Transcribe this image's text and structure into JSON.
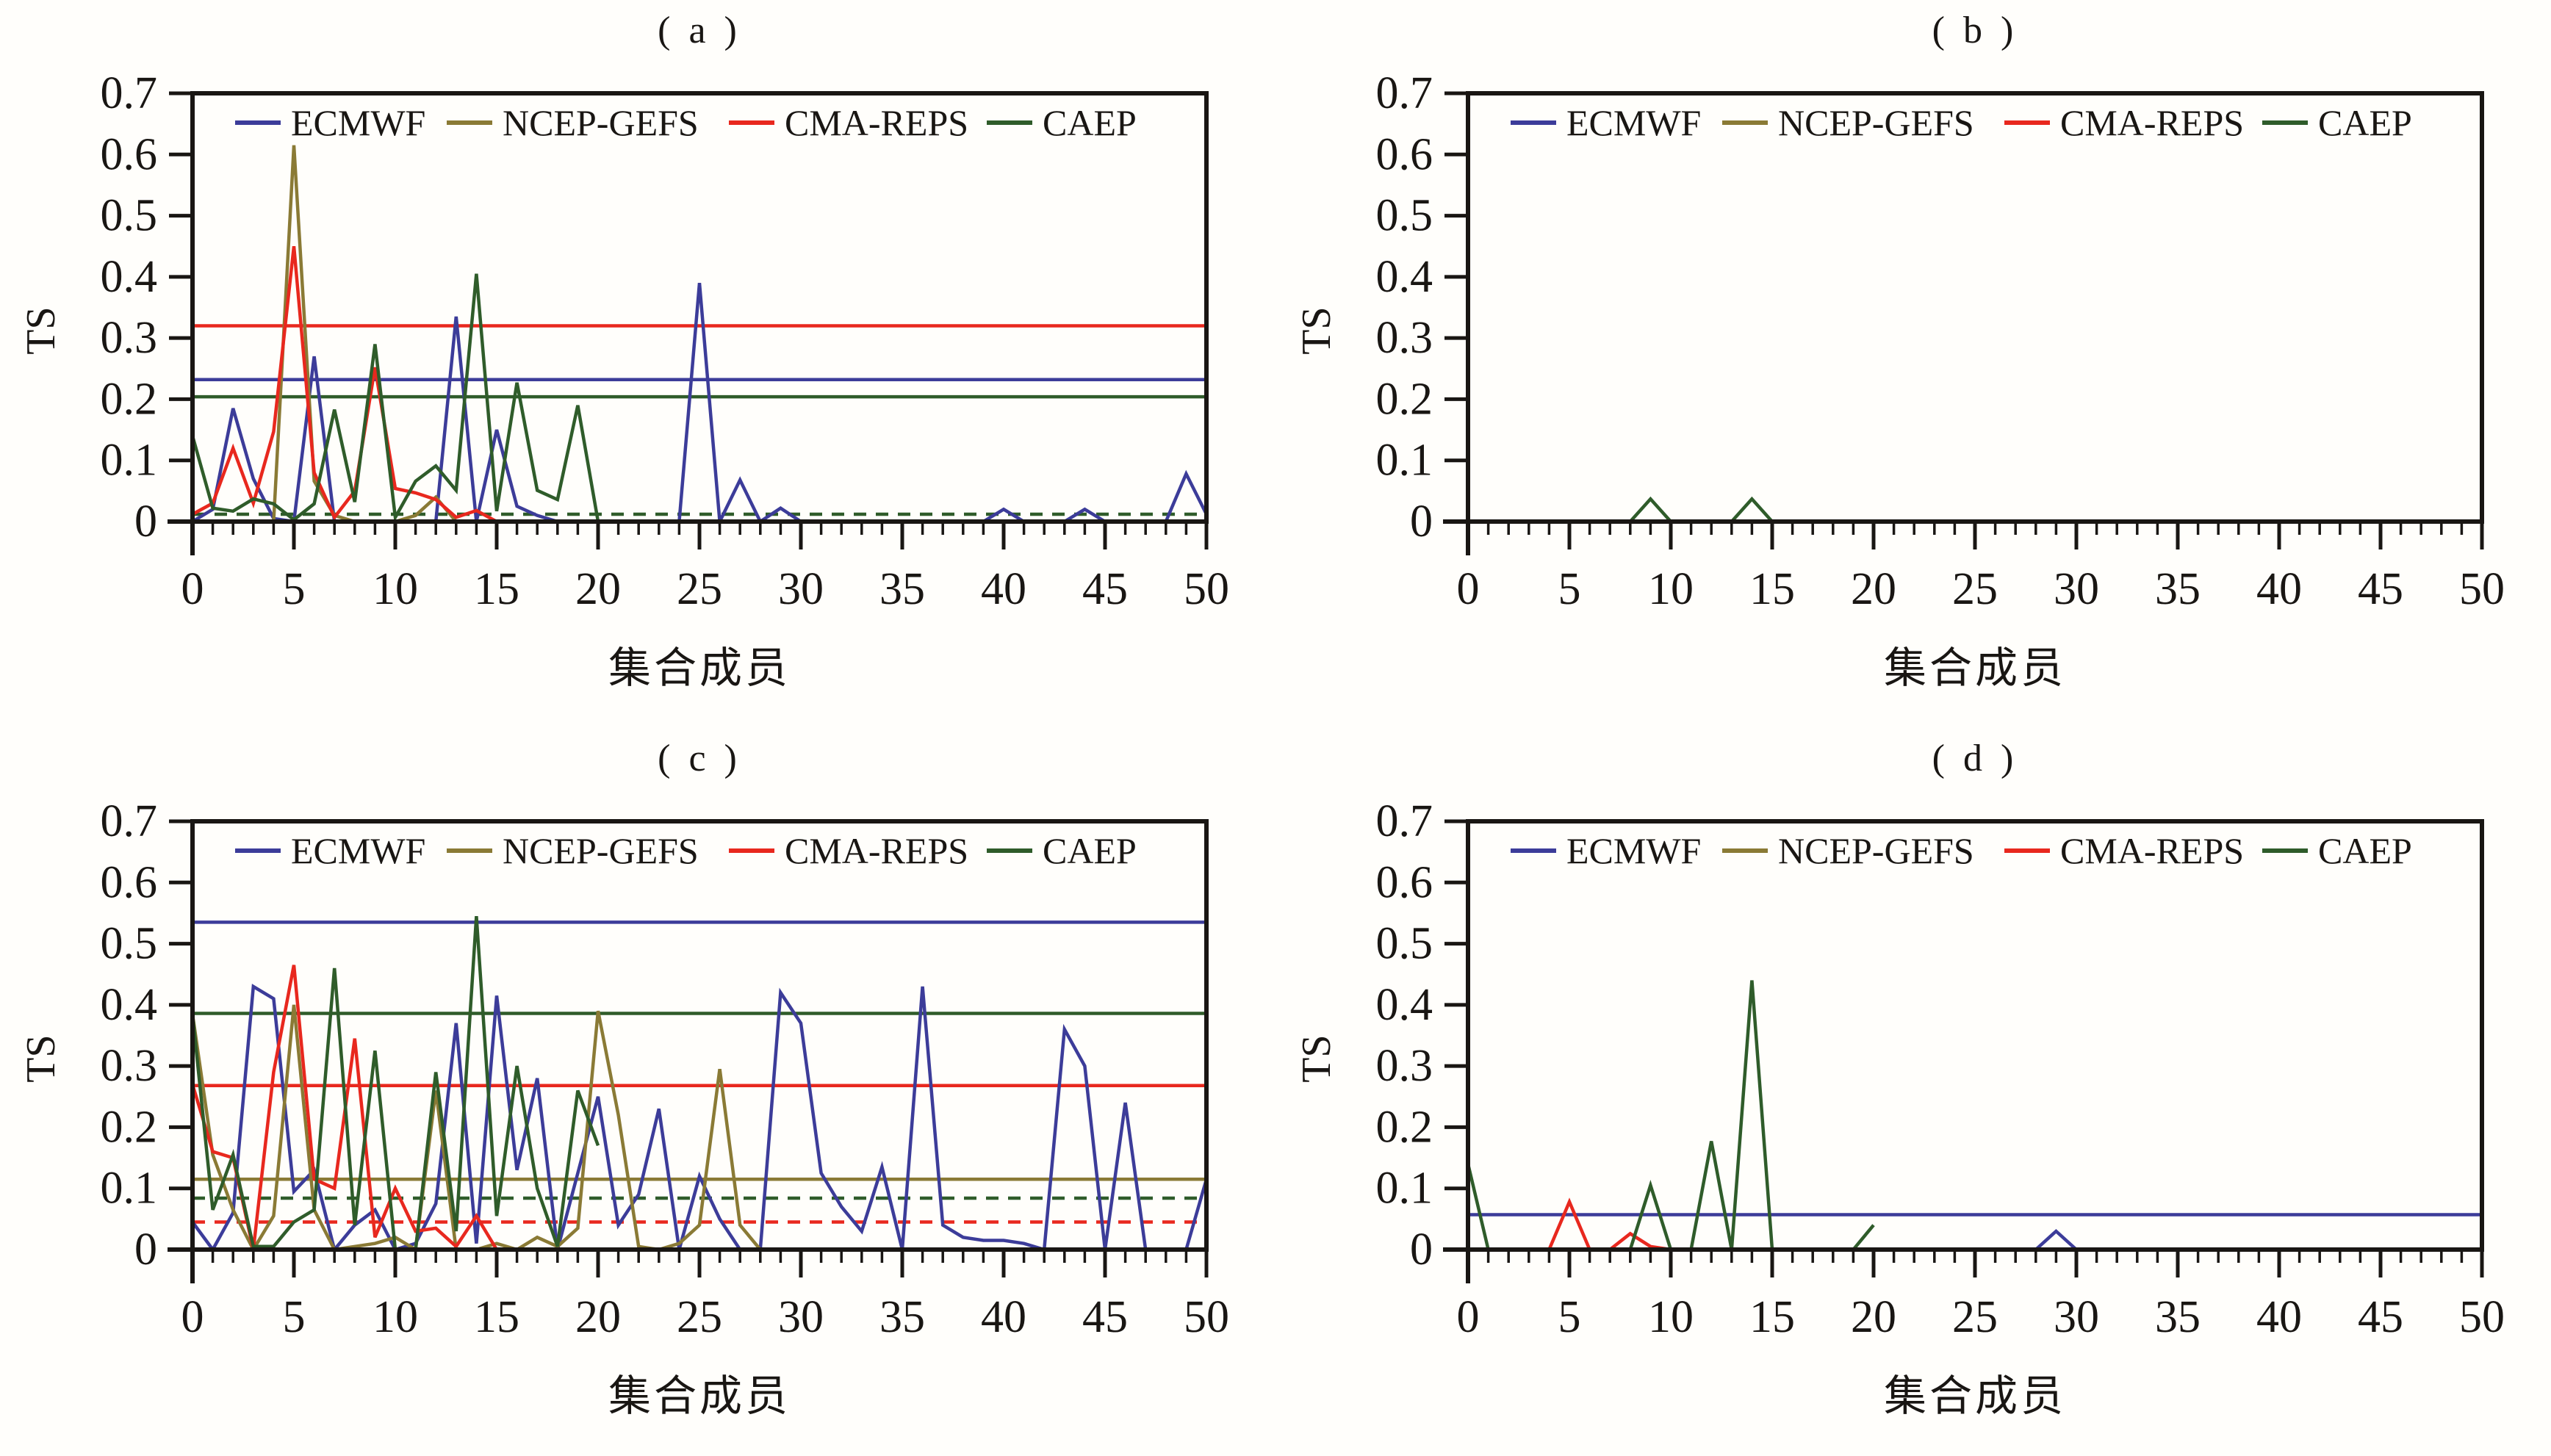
{
  "figure": {
    "background": "#fffefb",
    "ylabel": "TS",
    "xlabel": "集合成员"
  },
  "colors": {
    "ecmwf": "#3c3c99",
    "ncep_gefs": "#8a7a35",
    "cma_reps": "#e8281e",
    "caep": "#2f5c2a",
    "axis": "#191613"
  },
  "legend": [
    {
      "key": "ecmwf",
      "label": "ECMWF"
    },
    {
      "key": "ncep_gefs",
      "label": "NCEP-GEFS"
    },
    {
      "key": "cma_reps",
      "label": "CMA-REPS"
    },
    {
      "key": "caep",
      "label": "CAEP"
    }
  ],
  "axis": {
    "x_min": 0,
    "x_max": 50,
    "x_major_step": 5,
    "x_minor_step": 1,
    "x_tick_labels": [
      "0",
      "5",
      "10",
      "15",
      "20",
      "25",
      "30",
      "35",
      "40",
      "45",
      "50"
    ],
    "y_min": 0,
    "y_max": 0.7,
    "y_tick_labels": [
      "0",
      "0.1",
      "0.2",
      "0.3",
      "0.4",
      "0.5",
      "0.6",
      "0.7"
    ]
  },
  "chart_data": [
    {
      "type": "line",
      "title": "( a )",
      "xlabel": "集合成员",
      "ylabel": "TS",
      "x_start": 0,
      "x_step": 1,
      "x_range": [
        0,
        50
      ],
      "y_range": [
        0,
        0.7
      ],
      "legend_position": "top-inside",
      "series": [
        {
          "key": "ecmwf",
          "name": "ECMWF",
          "values": [
            0,
            0.02,
            0.185,
            0.07,
            0.005,
            0,
            0.27,
            0,
            0,
            0,
            0,
            0,
            0,
            0.335,
            0,
            0.15,
            0.025,
            0.01,
            0,
            0,
            0,
            0,
            0,
            0,
            0,
            0.39,
            0,
            0.068,
            0,
            0.022,
            0,
            0,
            0,
            0,
            0,
            0,
            0,
            0,
            0,
            0,
            0.02,
            0,
            0,
            0,
            0.02,
            0,
            0,
            0,
            0,
            0.078,
            0.012
          ]
        },
        {
          "key": "ncep_gefs",
          "name": "NCEP-GEFS",
          "values": [
            0,
            0,
            0,
            0,
            0,
            0.615,
            0.066,
            0.01,
            0,
            0,
            0,
            0.01,
            0.04,
            0,
            0,
            0,
            0,
            0,
            0,
            0,
            0
          ]
        },
        {
          "key": "cma_reps",
          "name": "CMA-REPS",
          "values": [
            0.012,
            0.03,
            0.12,
            0.03,
            0.147,
            0.45,
            0.08,
            0.007,
            0.05,
            0.252,
            0.054,
            0.047,
            0.036,
            0.007,
            0.018,
            0
          ]
        },
        {
          "key": "caep",
          "name": "CAEP",
          "values": [
            0.14,
            0.022,
            0.017,
            0.037,
            0.029,
            0.003,
            0.029,
            0.183,
            0.032,
            0.29,
            0.007,
            0.066,
            0.091,
            0.051,
            0.405,
            0.017,
            0.227,
            0.051,
            0.036,
            0.19,
            0
          ]
        }
      ],
      "ref_lines": [
        {
          "key": "cma_reps",
          "value": 0.32,
          "style": "solid"
        },
        {
          "key": "ecmwf",
          "value": 0.232,
          "style": "solid"
        },
        {
          "key": "caep",
          "value": 0.204,
          "style": "solid"
        },
        {
          "key": "caep",
          "value": 0.012,
          "style": "dashed"
        }
      ]
    },
    {
      "type": "line",
      "title": "( b )",
      "xlabel": "集合成员",
      "ylabel": "TS",
      "x_start": 0,
      "x_step": 1,
      "x_range": [
        0,
        50
      ],
      "y_range": [
        0,
        0.7
      ],
      "legend_position": "top-inside",
      "series": [
        {
          "key": "ecmwf",
          "name": "ECMWF",
          "values": [
            0,
            0,
            0,
            0,
            0,
            0,
            0,
            0,
            0,
            0,
            0,
            0,
            0,
            0,
            0,
            0,
            0,
            0,
            0,
            0,
            0,
            0,
            0,
            0,
            0,
            0,
            0,
            0,
            0,
            0,
            0,
            0,
            0,
            0,
            0,
            0,
            0,
            0,
            0,
            0,
            0,
            0,
            0,
            0,
            0,
            0,
            0,
            0,
            0,
            0,
            0
          ]
        },
        {
          "key": "ncep_gefs",
          "name": "NCEP-GEFS",
          "values": [
            0,
            0,
            0,
            0,
            0,
            0,
            0,
            0,
            0,
            0,
            0,
            0,
            0,
            0,
            0,
            0,
            0,
            0,
            0,
            0,
            0
          ]
        },
        {
          "key": "cma_reps",
          "name": "CMA-REPS",
          "values": [
            0,
            0,
            0,
            0,
            0,
            0,
            0,
            0,
            0,
            0,
            0,
            0,
            0,
            0,
            0,
            0
          ]
        },
        {
          "key": "caep",
          "name": "CAEP",
          "values": [
            0,
            0,
            0,
            0,
            0,
            0,
            0,
            0,
            0,
            0.037,
            0,
            0,
            0,
            0,
            0.037,
            0,
            0,
            0,
            0,
            0,
            0
          ]
        }
      ],
      "ref_lines": []
    },
    {
      "type": "line",
      "title": "( c )",
      "xlabel": "集合成员",
      "ylabel": "TS",
      "x_start": 0,
      "x_step": 1,
      "x_range": [
        0,
        50
      ],
      "y_range": [
        0,
        0.7
      ],
      "legend_position": "top-inside",
      "series": [
        {
          "key": "ecmwf",
          "name": "ECMWF",
          "values": [
            0.045,
            0,
            0.06,
            0.43,
            0.41,
            0.095,
            0.13,
            0,
            0.04,
            0.065,
            0,
            0.01,
            0.075,
            0.37,
            0.01,
            0.415,
            0.13,
            0.28,
            0,
            0.125,
            0.25,
            0.04,
            0.09,
            0.23,
            0,
            0.12,
            0.05,
            0,
            0,
            0.42,
            0.37,
            0.125,
            0.07,
            0.03,
            0.135,
            0,
            0.43,
            0.04,
            0.02,
            0.015,
            0.015,
            0.01,
            0,
            0.36,
            0.3,
            0,
            0.24,
            0,
            0,
            0,
            0.115
          ]
        },
        {
          "key": "ncep_gefs",
          "name": "NCEP-GEFS",
          "values": [
            0.385,
            0.155,
            0.065,
            0,
            0.055,
            0.4,
            0.065,
            0,
            0.005,
            0.01,
            0.02,
            0,
            0.26,
            0,
            0,
            0.01,
            0,
            0.02,
            0.005,
            0.035,
            0.39,
            0.22,
            0.005,
            0,
            0.01,
            0.04,
            0.295,
            0.04,
            0,
            0,
            0
          ]
        },
        {
          "key": "cma_reps",
          "name": "CMA-REPS",
          "values": [
            0.27,
            0.16,
            0.15,
            0,
            0.29,
            0.465,
            0.115,
            0.1,
            0.345,
            0.02,
            0.1,
            0.03,
            0.035,
            0.005,
            0.055,
            0,
            0
          ]
        },
        {
          "key": "caep",
          "name": "CAEP",
          "values": [
            0.385,
            0.065,
            0.155,
            0.005,
            0.005,
            0.045,
            0.065,
            0.46,
            0.04,
            0.325,
            0,
            0,
            0.29,
            0.03,
            0.545,
            0.055,
            0.3,
            0.1,
            0.005,
            0.26,
            0.17
          ]
        }
      ],
      "ref_lines": [
        {
          "key": "ecmwf",
          "value": 0.535,
          "style": "solid"
        },
        {
          "key": "caep",
          "value": 0.386,
          "style": "solid"
        },
        {
          "key": "cma_reps",
          "value": 0.268,
          "style": "solid"
        },
        {
          "key": "ncep_gefs",
          "value": 0.115,
          "style": "solid"
        },
        {
          "key": "caep",
          "value": 0.084,
          "style": "dashed"
        },
        {
          "key": "cma_reps",
          "value": 0.045,
          "style": "dashed"
        }
      ]
    },
    {
      "type": "line",
      "title": "( d )",
      "xlabel": "集合成员",
      "ylabel": "TS",
      "x_start": 0,
      "x_step": 1,
      "x_range": [
        0,
        50
      ],
      "y_range": [
        0,
        0.7
      ],
      "legend_position": "top-inside",
      "series": [
        {
          "key": "ecmwf",
          "name": "ECMWF",
          "values": [
            0,
            0,
            0,
            0,
            0,
            0,
            0,
            0,
            0,
            0,
            0,
            0,
            0,
            0,
            0,
            0,
            0,
            0,
            0,
            0,
            0,
            0,
            0,
            0,
            0,
            0,
            0,
            0,
            0,
            0.03,
            0,
            0,
            0,
            0,
            0,
            0,
            0,
            0,
            0,
            0,
            0,
            0,
            0,
            0,
            0,
            0,
            0,
            0,
            0,
            0,
            0
          ]
        },
        {
          "key": "ncep_gefs",
          "name": "NCEP-GEFS",
          "values": [
            0,
            0,
            0,
            0,
            0,
            0,
            0,
            0,
            0,
            0,
            0,
            0,
            0,
            0,
            0,
            0,
            0,
            0,
            0,
            0,
            0
          ]
        },
        {
          "key": "cma_reps",
          "name": "CMA-REPS",
          "values": [
            0,
            0,
            0,
            0,
            0,
            0.078,
            0,
            0,
            0.026,
            0.005,
            0,
            0,
            0,
            0,
            0,
            0
          ]
        },
        {
          "key": "caep",
          "name": "CAEP",
          "values": [
            0.14,
            0,
            0,
            0,
            0,
            0,
            0,
            0,
            0,
            0.105,
            0,
            0,
            0.177,
            0,
            0.44,
            0,
            0,
            0,
            0,
            0,
            0.04
          ]
        }
      ],
      "ref_lines": [
        {
          "key": "ecmwf",
          "value": 0.057,
          "style": "solid"
        }
      ]
    }
  ]
}
